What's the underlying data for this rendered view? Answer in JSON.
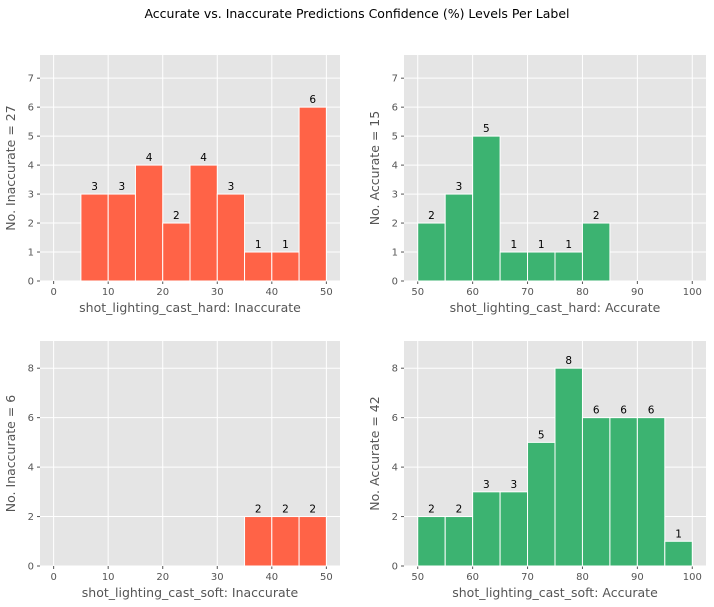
{
  "figure_title": "Accurate vs. Inaccurate Predictions Confidence (%) Levels Per Label",
  "chart_data": [
    {
      "type": "bar",
      "subtype": "histogram",
      "xlabel": "shot_lighting_cast_hard: Inaccurate",
      "ylabel": "No. Inaccurate = 27",
      "color": "#ff6347",
      "xlim": [
        -2.5,
        52.5
      ],
      "ylim": [
        0,
        7.8
      ],
      "xticks": [
        0,
        10,
        20,
        30,
        40,
        50
      ],
      "yticks": [
        0,
        1,
        2,
        3,
        4,
        5,
        6,
        7
      ],
      "bin_width": 5,
      "bins": [
        5,
        10,
        15,
        20,
        25,
        30,
        35,
        40,
        45
      ],
      "values": [
        3,
        3,
        4,
        2,
        4,
        3,
        1,
        1,
        6
      ]
    },
    {
      "type": "bar",
      "subtype": "histogram",
      "xlabel": "shot_lighting_cast_hard: Accurate",
      "ylabel": "No. Accurate = 15",
      "color": "#3cb371",
      "xlim": [
        47.5,
        102.5
      ],
      "ylim": [
        0,
        7.8
      ],
      "xticks": [
        50,
        60,
        70,
        80,
        90,
        100
      ],
      "yticks": [
        0,
        1,
        2,
        3,
        4,
        5,
        6,
        7
      ],
      "bin_width": 5,
      "bins": [
        50,
        55,
        60,
        65,
        70,
        75,
        80
      ],
      "values": [
        2,
        3,
        5,
        1,
        1,
        1,
        2
      ]
    },
    {
      "type": "bar",
      "subtype": "histogram",
      "xlabel": "shot_lighting_cast_soft: Inaccurate",
      "ylabel": "No. Inaccurate = 6",
      "color": "#ff6347",
      "xlim": [
        -2.5,
        52.5
      ],
      "ylim": [
        0,
        9.1
      ],
      "xticks": [
        0,
        10,
        20,
        30,
        40,
        50
      ],
      "yticks": [
        0,
        2,
        4,
        6,
        8
      ],
      "bin_width": 5,
      "bins": [
        35,
        40,
        45
      ],
      "values": [
        2,
        2,
        2
      ]
    },
    {
      "type": "bar",
      "subtype": "histogram",
      "xlabel": "shot_lighting_cast_soft: Accurate",
      "ylabel": "No. Accurate = 42",
      "color": "#3cb371",
      "xlim": [
        47.5,
        102.5
      ],
      "ylim": [
        0,
        9.1
      ],
      "xticks": [
        50,
        60,
        70,
        80,
        90,
        100
      ],
      "yticks": [
        0,
        2,
        4,
        6,
        8
      ],
      "bin_width": 5,
      "bins": [
        50,
        55,
        60,
        65,
        70,
        75,
        80,
        85,
        90,
        95
      ],
      "values": [
        2,
        2,
        3,
        3,
        5,
        8,
        6,
        6,
        6,
        1
      ]
    }
  ]
}
